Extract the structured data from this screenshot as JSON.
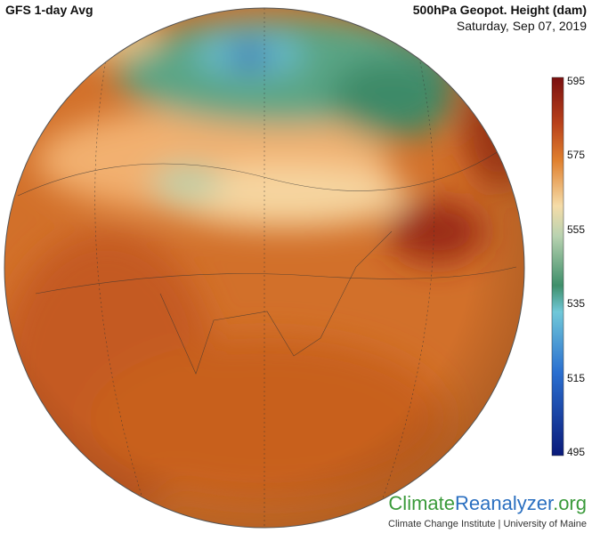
{
  "header": {
    "title": "GFS 1-day Avg",
    "variable": "500hPa Geopot. Height (dam)",
    "date": "Saturday, Sep 07, 2019"
  },
  "colorbar": {
    "ticks": [
      595,
      575,
      555,
      535,
      515,
      495
    ]
  },
  "footer": {
    "logo": [
      "Climate",
      "Reanalyzer",
      ".org"
    ],
    "institute": "Climate Change Institute | University of Maine"
  }
}
